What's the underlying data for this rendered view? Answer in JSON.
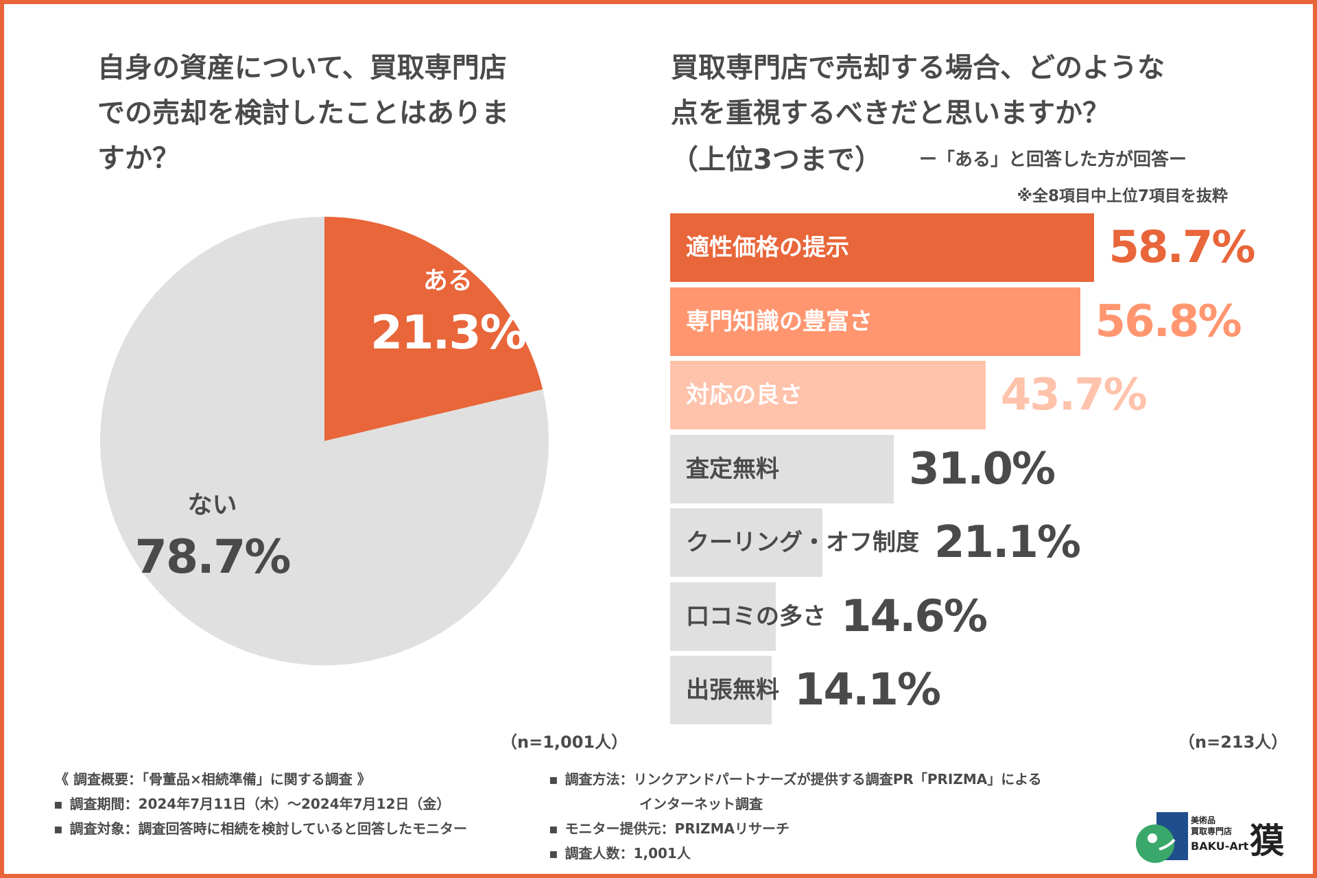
{
  "left_question": "自身の資産について、買取専門店\nでの売却を検討したことはありま\nすか？",
  "right_question": "買取専門店で売却する場合、どのような\n点を重視するべきだと思いますか？",
  "right_sub": "（上位3つまで）",
  "respondents_note": "ー「ある」と回答した方が回答ー",
  "excerpt_note": "※全8項目中上位7項目を抜粋",
  "left_n": "（n=1,001人）",
  "right_n": "（n=213人）",
  "chart_data": [
    {
      "type": "pie",
      "title": "自身の資産について、買取専門店での売却を検討したことはありますか？",
      "labels": [
        "ある",
        "ない"
      ],
      "values": [
        21.3,
        78.7
      ],
      "value_labels": [
        "21.3%",
        "78.7%"
      ],
      "colors": [
        "#e8663a",
        "#e0e0e0"
      ],
      "label_colors": [
        "#ffffff",
        "#4a4a4a"
      ],
      "n": "（n=1,001人）"
    },
    {
      "type": "bar",
      "orientation": "horizontal",
      "title": "買取専門店で売却する場合、どのような点を重視するべきだと思いますか？（上位3つまで）",
      "categories": [
        "適性価格の提示",
        "専門知識の豊富さ",
        "対応の良さ",
        "査定無料",
        "クーリング・オフ制度",
        "口コミの多さ",
        "出張無料"
      ],
      "values": [
        58.7,
        56.8,
        43.7,
        31.0,
        21.1,
        14.6,
        14.1
      ],
      "value_labels": [
        "58.7%",
        "56.8%",
        "43.7%",
        "31.0%",
        "21.1%",
        "14.6%",
        "14.1%"
      ],
      "bar_colors": [
        "#e8663a",
        "#ff9670",
        "#ffc2ab",
        "#e0e0e0",
        "#e0e0e0",
        "#e0e0e0",
        "#e0e0e0"
      ],
      "label_colors": [
        "#ffffff",
        "#ffffff",
        "#ffffff",
        "#4a4a4a",
        "#4a4a4a",
        "#4a4a4a",
        "#4a4a4a"
      ],
      "value_colors": [
        "#e8663a",
        "#ff9670",
        "#ffc2ab",
        "#4a4a4a",
        "#4a4a4a",
        "#4a4a4a",
        "#4a4a4a"
      ],
      "n": "（n=213人）"
    }
  ],
  "footer": {
    "summary": "《 調査概要：「骨董品×相続準備」に関する調査 》",
    "period": "調査期間：2024年7月11日（木）～2024年7月12日（金）",
    "target": "調査対象：調査回答時に相続を検討していると回答したモニター",
    "method": "調査方法：リンクアンドパートナーズが提供する調査PR「PRIZMA」による",
    "method_cont": "インターネット調査",
    "provider": "モニター提供元：PRIZMAリサーチ",
    "count": "調査人数：1,001人",
    "bullet": "▪"
  },
  "logo": {
    "line1": "美術品",
    "line2": "買取専門店",
    "brand": "BAKU-Art",
    "kanji": "獏"
  }
}
